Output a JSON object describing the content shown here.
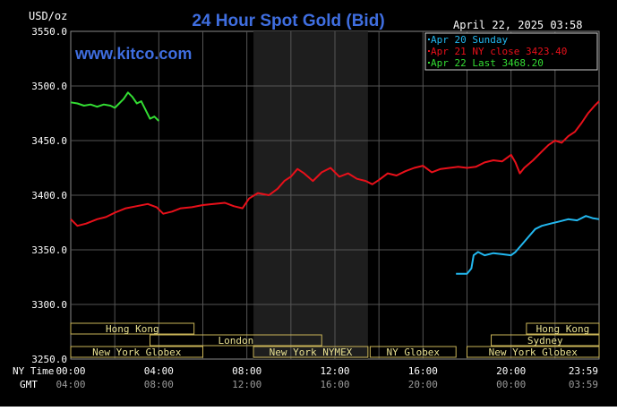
{
  "chart_data": {
    "type": "line",
    "title": "24 Hour Spot Gold (Bid)",
    "watermark": "www.kitco.com",
    "timestamp": "April 22, 2025 03:58",
    "ylabel": "USD/oz",
    "ylim": [
      3250,
      3550
    ],
    "yticks": [
      {
        "value": 3550,
        "label": "3550.0"
      },
      {
        "value": 3500,
        "label": "3500.0"
      },
      {
        "value": 3450,
        "label": "3450.0"
      },
      {
        "value": 3400,
        "label": "3400.0"
      },
      {
        "value": 3350,
        "label": "3350.0"
      },
      {
        "value": 3300,
        "label": "3300.0"
      },
      {
        "value": 3250,
        "label": "3250.0"
      }
    ],
    "xlim": [
      0,
      24
    ],
    "x_unit": "hours (NY time)",
    "xticks": [
      {
        "hour": 0,
        "ny": "00:00",
        "gmt": "04:00"
      },
      {
        "hour": 4,
        "ny": "04:00",
        "gmt": "08:00"
      },
      {
        "hour": 8,
        "ny": "08:00",
        "gmt": "12:00"
      },
      {
        "hour": 12,
        "ny": "12:00",
        "gmt": "16:00"
      },
      {
        "hour": 16,
        "ny": "16:00",
        "gmt": "20:00"
      },
      {
        "hour": 20,
        "ny": "20:00",
        "gmt": "00:00"
      },
      {
        "hour": 24,
        "ny": "23:59",
        "gmt": "03:59"
      }
    ],
    "x_row_labels": {
      "ny": "NY Time",
      "gmt": "GMT"
    },
    "shaded_region": [
      8.3,
      13.5
    ],
    "grid": true,
    "legend_position": "top-right",
    "series": [
      {
        "name": "Apr 20 Sunday",
        "color": "#22b8f0",
        "points": [
          [
            17.5,
            3328
          ],
          [
            18.0,
            3328
          ],
          [
            18.2,
            3333
          ],
          [
            18.3,
            3345
          ],
          [
            18.5,
            3348
          ],
          [
            18.8,
            3345
          ],
          [
            19.2,
            3347
          ],
          [
            19.6,
            3346
          ],
          [
            20.0,
            3345
          ],
          [
            20.2,
            3348
          ],
          [
            20.5,
            3355
          ],
          [
            20.8,
            3362
          ],
          [
            21.1,
            3369
          ],
          [
            21.4,
            3372
          ],
          [
            21.8,
            3374
          ],
          [
            22.2,
            3376
          ],
          [
            22.6,
            3378
          ],
          [
            23.0,
            3377
          ],
          [
            23.4,
            3381
          ],
          [
            23.7,
            3379
          ],
          [
            24.0,
            3378
          ]
        ]
      },
      {
        "name": "Apr 21 NY close 3423.40",
        "color": "#e8101a",
        "points": [
          [
            0.0,
            3378
          ],
          [
            0.3,
            3372
          ],
          [
            0.7,
            3374
          ],
          [
            1.2,
            3378
          ],
          [
            1.6,
            3380
          ],
          [
            2.0,
            3384
          ],
          [
            2.5,
            3388
          ],
          [
            3.0,
            3390
          ],
          [
            3.5,
            3392
          ],
          [
            3.9,
            3389
          ],
          [
            4.2,
            3383
          ],
          [
            4.6,
            3385
          ],
          [
            5.0,
            3388
          ],
          [
            5.5,
            3389
          ],
          [
            6.0,
            3391
          ],
          [
            6.5,
            3392
          ],
          [
            7.0,
            3393
          ],
          [
            7.4,
            3390
          ],
          [
            7.8,
            3388
          ],
          [
            8.1,
            3397
          ],
          [
            8.5,
            3402
          ],
          [
            9.0,
            3400
          ],
          [
            9.4,
            3406
          ],
          [
            9.7,
            3413
          ],
          [
            10.0,
            3417
          ],
          [
            10.3,
            3424
          ],
          [
            10.6,
            3420
          ],
          [
            11.0,
            3413
          ],
          [
            11.4,
            3421
          ],
          [
            11.8,
            3425
          ],
          [
            12.2,
            3417
          ],
          [
            12.6,
            3420
          ],
          [
            13.0,
            3415
          ],
          [
            13.4,
            3413
          ],
          [
            13.7,
            3410
          ],
          [
            14.0,
            3414
          ],
          [
            14.4,
            3420
          ],
          [
            14.8,
            3418
          ],
          [
            15.2,
            3422
          ],
          [
            15.6,
            3425
          ],
          [
            16.0,
            3427
          ],
          [
            16.4,
            3421
          ],
          [
            16.8,
            3424
          ],
          [
            17.2,
            3425
          ],
          [
            17.6,
            3426
          ],
          [
            18.0,
            3425
          ],
          [
            18.4,
            3426
          ],
          [
            18.8,
            3430
          ],
          [
            19.2,
            3432
          ],
          [
            19.6,
            3431
          ],
          [
            20.0,
            3437
          ],
          [
            20.2,
            3430
          ],
          [
            20.4,
            3420
          ],
          [
            20.6,
            3425
          ],
          [
            21.0,
            3432
          ],
          [
            21.4,
            3440
          ],
          [
            21.7,
            3446
          ],
          [
            22.0,
            3450
          ],
          [
            22.3,
            3448
          ],
          [
            22.6,
            3454
          ],
          [
            22.9,
            3458
          ],
          [
            23.2,
            3466
          ],
          [
            23.5,
            3475
          ],
          [
            23.8,
            3482
          ],
          [
            24.0,
            3486
          ]
        ]
      },
      {
        "name": "Apr 22 Last 3468.20",
        "color": "#33dd33",
        "points": [
          [
            0.0,
            3485
          ],
          [
            0.3,
            3484
          ],
          [
            0.6,
            3482
          ],
          [
            0.9,
            3483
          ],
          [
            1.2,
            3481
          ],
          [
            1.5,
            3483
          ],
          [
            1.8,
            3482
          ],
          [
            2.0,
            3480
          ],
          [
            2.2,
            3484
          ],
          [
            2.4,
            3488
          ],
          [
            2.6,
            3494
          ],
          [
            2.8,
            3490
          ],
          [
            3.0,
            3484
          ],
          [
            3.2,
            3486
          ],
          [
            3.4,
            3478
          ],
          [
            3.6,
            3470
          ],
          [
            3.8,
            3472
          ],
          [
            4.0,
            3468
          ]
        ]
      }
    ],
    "sessions_top": [
      {
        "label": "Hong Kong",
        "start": 0.0,
        "end": 5.6,
        "row": 1
      },
      {
        "label": "London",
        "start": 3.6,
        "end": 11.4,
        "row": 2
      },
      {
        "label": "New York Globex",
        "start": 0.0,
        "end": 6.0,
        "row": 3
      },
      {
        "label": "New York NYMEX",
        "start": 8.3,
        "end": 13.5,
        "row": 3
      },
      {
        "label": "NY Globex",
        "start": 13.6,
        "end": 17.5,
        "row": 3
      },
      {
        "label": "Hong Kong",
        "start": 20.7,
        "end": 24.0,
        "row": 1
      },
      {
        "label": "Sydney",
        "start": 19.1,
        "end": 24.0,
        "row": 2
      },
      {
        "label": "New York Globex",
        "start": 18.0,
        "end": 24.0,
        "row": 3
      }
    ]
  }
}
